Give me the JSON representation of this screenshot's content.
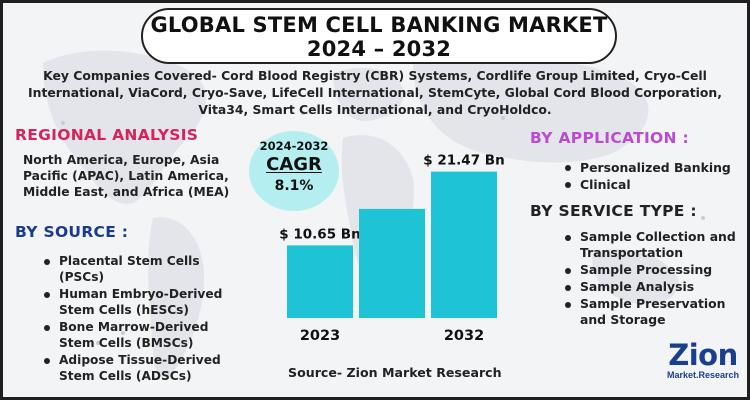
{
  "title": {
    "line1": "GLOBAL STEM CELL BANKING MARKET",
    "line2": "2024 – 2032"
  },
  "companies": "Key Companies Covered- Cord Blood Registry (CBR) Systems, Cordlife Group Limited, Cryo-Cell International, ViaCord, Cryo-Save, LifeCell International, StemCyte, Global Cord Blood Corporation, Vita34, Smart Cells International, and CryoHoldco.",
  "regional": {
    "heading": "REGIONAL ANALYSIS",
    "text": "North America, Europe, Asia Pacific (APAC), Latin America, Middle East, and Africa (MEA)"
  },
  "source_segment": {
    "heading": "BY SOURCE :",
    "items": [
      "Placental Stem Cells (PSCs)",
      "Human Embryo-Derived Stem Cells (hESCs)",
      "Bone Marrow-Derived Stem Cells (BMSCs)",
      "Adipose Tissue-Derived Stem Cells (ADSCs)"
    ]
  },
  "application": {
    "heading": "BY APPLICATION :",
    "items": [
      "Personalized Banking",
      "Clinical"
    ]
  },
  "service_type": {
    "heading": "BY SERVICE TYPE :",
    "items": [
      "Sample Collection and Transportation",
      "Sample Processing",
      "Sample Analysis",
      "Sample Preservation and Storage"
    ]
  },
  "cagr": {
    "period": "2024-2032",
    "label": "CAGR",
    "value": "8.1%"
  },
  "source_credit": "Source- Zion Market Research",
  "logo": {
    "word": "Zion",
    "sub": "Market.Research"
  },
  "colors": {
    "bar": "#1ec4d6",
    "regional": "#d6245b",
    "source": "#1a3b8c",
    "application": "#bb4bd1"
  },
  "chart_data": {
    "type": "bar",
    "categories": [
      "2023",
      "",
      "2032"
    ],
    "values": [
      10.65,
      16.0,
      21.47
    ],
    "data_labels": [
      "$ 10.65 Bn",
      "",
      "$ 21.47 Bn"
    ],
    "unit": "USD Billion",
    "title": "",
    "xlabel": "",
    "ylabel": "",
    "ylim": [
      0,
      22
    ],
    "grid": false,
    "legend": "none"
  }
}
